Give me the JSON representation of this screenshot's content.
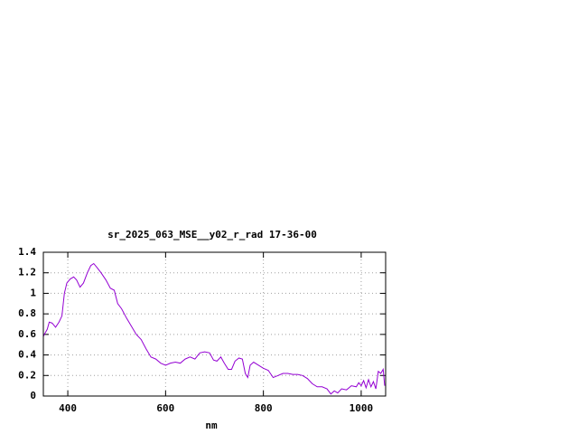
{
  "chart_data": {
    "type": "line",
    "title": "sr_2025_063_MSE__y02_r_rad 17-36-00",
    "x_label": "nm",
    "x": [
      350,
      352,
      358,
      362,
      368,
      375,
      382,
      388,
      393,
      398,
      405,
      412,
      418,
      425,
      432,
      440,
      447,
      453,
      460,
      468,
      478,
      487,
      495,
      502,
      510,
      520,
      530,
      540,
      550,
      560,
      570,
      580,
      590,
      600,
      610,
      620,
      630,
      640,
      650,
      660,
      670,
      680,
      690,
      698,
      705,
      713,
      720,
      728,
      735,
      742,
      750,
      757,
      763,
      768,
      773,
      780,
      790,
      800,
      810,
      820,
      830,
      840,
      850,
      860,
      870,
      880,
      890,
      900,
      910,
      920,
      930,
      938,
      945,
      952,
      960,
      970,
      980,
      990,
      995,
      1000,
      1005,
      1010,
      1015,
      1020,
      1025,
      1030,
      1035,
      1040,
      1045,
      1048
    ],
    "series": [
      {
        "name": "sr_2025_063_MSE__y02_r_rad",
        "color": "#9400d3",
        "values": [
          0.58,
          0.6,
          0.65,
          0.72,
          0.71,
          0.67,
          0.72,
          0.78,
          1.0,
          1.1,
          1.14,
          1.16,
          1.13,
          1.06,
          1.1,
          1.2,
          1.27,
          1.29,
          1.25,
          1.2,
          1.13,
          1.05,
          1.03,
          0.9,
          0.85,
          0.76,
          0.68,
          0.6,
          0.55,
          0.46,
          0.38,
          0.36,
          0.32,
          0.3,
          0.32,
          0.33,
          0.32,
          0.36,
          0.38,
          0.36,
          0.42,
          0.43,
          0.42,
          0.35,
          0.34,
          0.38,
          0.32,
          0.26,
          0.26,
          0.34,
          0.37,
          0.36,
          0.22,
          0.18,
          0.3,
          0.33,
          0.3,
          0.27,
          0.25,
          0.18,
          0.2,
          0.22,
          0.22,
          0.21,
          0.21,
          0.2,
          0.17,
          0.12,
          0.09,
          0.09,
          0.07,
          0.02,
          0.05,
          0.03,
          0.07,
          0.06,
          0.1,
          0.09,
          0.13,
          0.1,
          0.15,
          0.08,
          0.16,
          0.09,
          0.14,
          0.07,
          0.24,
          0.22,
          0.26,
          0.1
        ]
      }
    ],
    "xlim": [
      350,
      1050
    ],
    "xticks": [
      400,
      600,
      800,
      1000
    ],
    "ylim": [
      0,
      1.4
    ],
    "yticks": [
      0,
      0.2,
      0.4,
      0.6,
      0.8,
      1,
      1.2,
      1.4
    ],
    "grid": true
  }
}
